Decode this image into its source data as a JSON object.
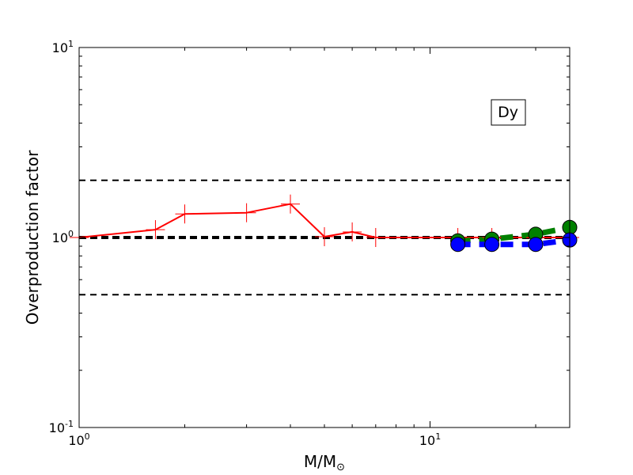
{
  "chart_data": {
    "type": "line",
    "xlabel_main": "M/M",
    "xlabel_sub": "⊙",
    "ylabel": "Overproduction factor",
    "annotation": "Dy",
    "xscale": "log",
    "yscale": "log",
    "xlim": [
      1,
      25
    ],
    "ylim": [
      0.1,
      10
    ],
    "x_ticks": [
      {
        "value": 1,
        "base": "10",
        "exp": "0"
      },
      {
        "value": 10,
        "base": "10",
        "exp": "1"
      }
    ],
    "y_ticks": [
      {
        "value": 0.1,
        "base": "10",
        "exp": "-1"
      },
      {
        "value": 1,
        "base": "10",
        "exp": "0"
      },
      {
        "value": 10,
        "base": "10",
        "exp": "1"
      }
    ],
    "reference_lines": [
      {
        "y": 2.0,
        "style": "dashed",
        "color": "#000000"
      },
      {
        "y": 1.0,
        "style": "dashed-thick",
        "color": "#000000"
      },
      {
        "y": 0.5,
        "style": "dashed",
        "color": "#000000"
      }
    ],
    "series": [
      {
        "color": "#ff0000",
        "style": "solid",
        "marker": "plus",
        "points": [
          [
            1.0,
            1.0
          ],
          [
            1.65,
            1.1
          ],
          [
            2.0,
            1.33
          ],
          [
            3.0,
            1.35
          ],
          [
            4.0,
            1.5
          ],
          [
            5.0,
            1.01
          ],
          [
            6.0,
            1.07
          ],
          [
            7.0,
            1.0
          ],
          [
            12.0,
            1.0
          ],
          [
            15.0,
            1.0
          ],
          [
            20.0,
            1.0
          ],
          [
            25.0,
            1.0
          ]
        ]
      },
      {
        "color": "#008000",
        "style": "dashed",
        "marker": "circle",
        "points": [
          [
            12.0,
            0.96
          ],
          [
            15.0,
            0.98
          ],
          [
            20.0,
            1.04
          ],
          [
            25.0,
            1.13
          ]
        ]
      },
      {
        "color": "#0000ff",
        "style": "dashed",
        "marker": "circle",
        "points": [
          [
            12.0,
            0.92
          ],
          [
            15.0,
            0.92
          ],
          [
            20.0,
            0.92
          ],
          [
            25.0,
            0.97
          ]
        ]
      }
    ]
  }
}
